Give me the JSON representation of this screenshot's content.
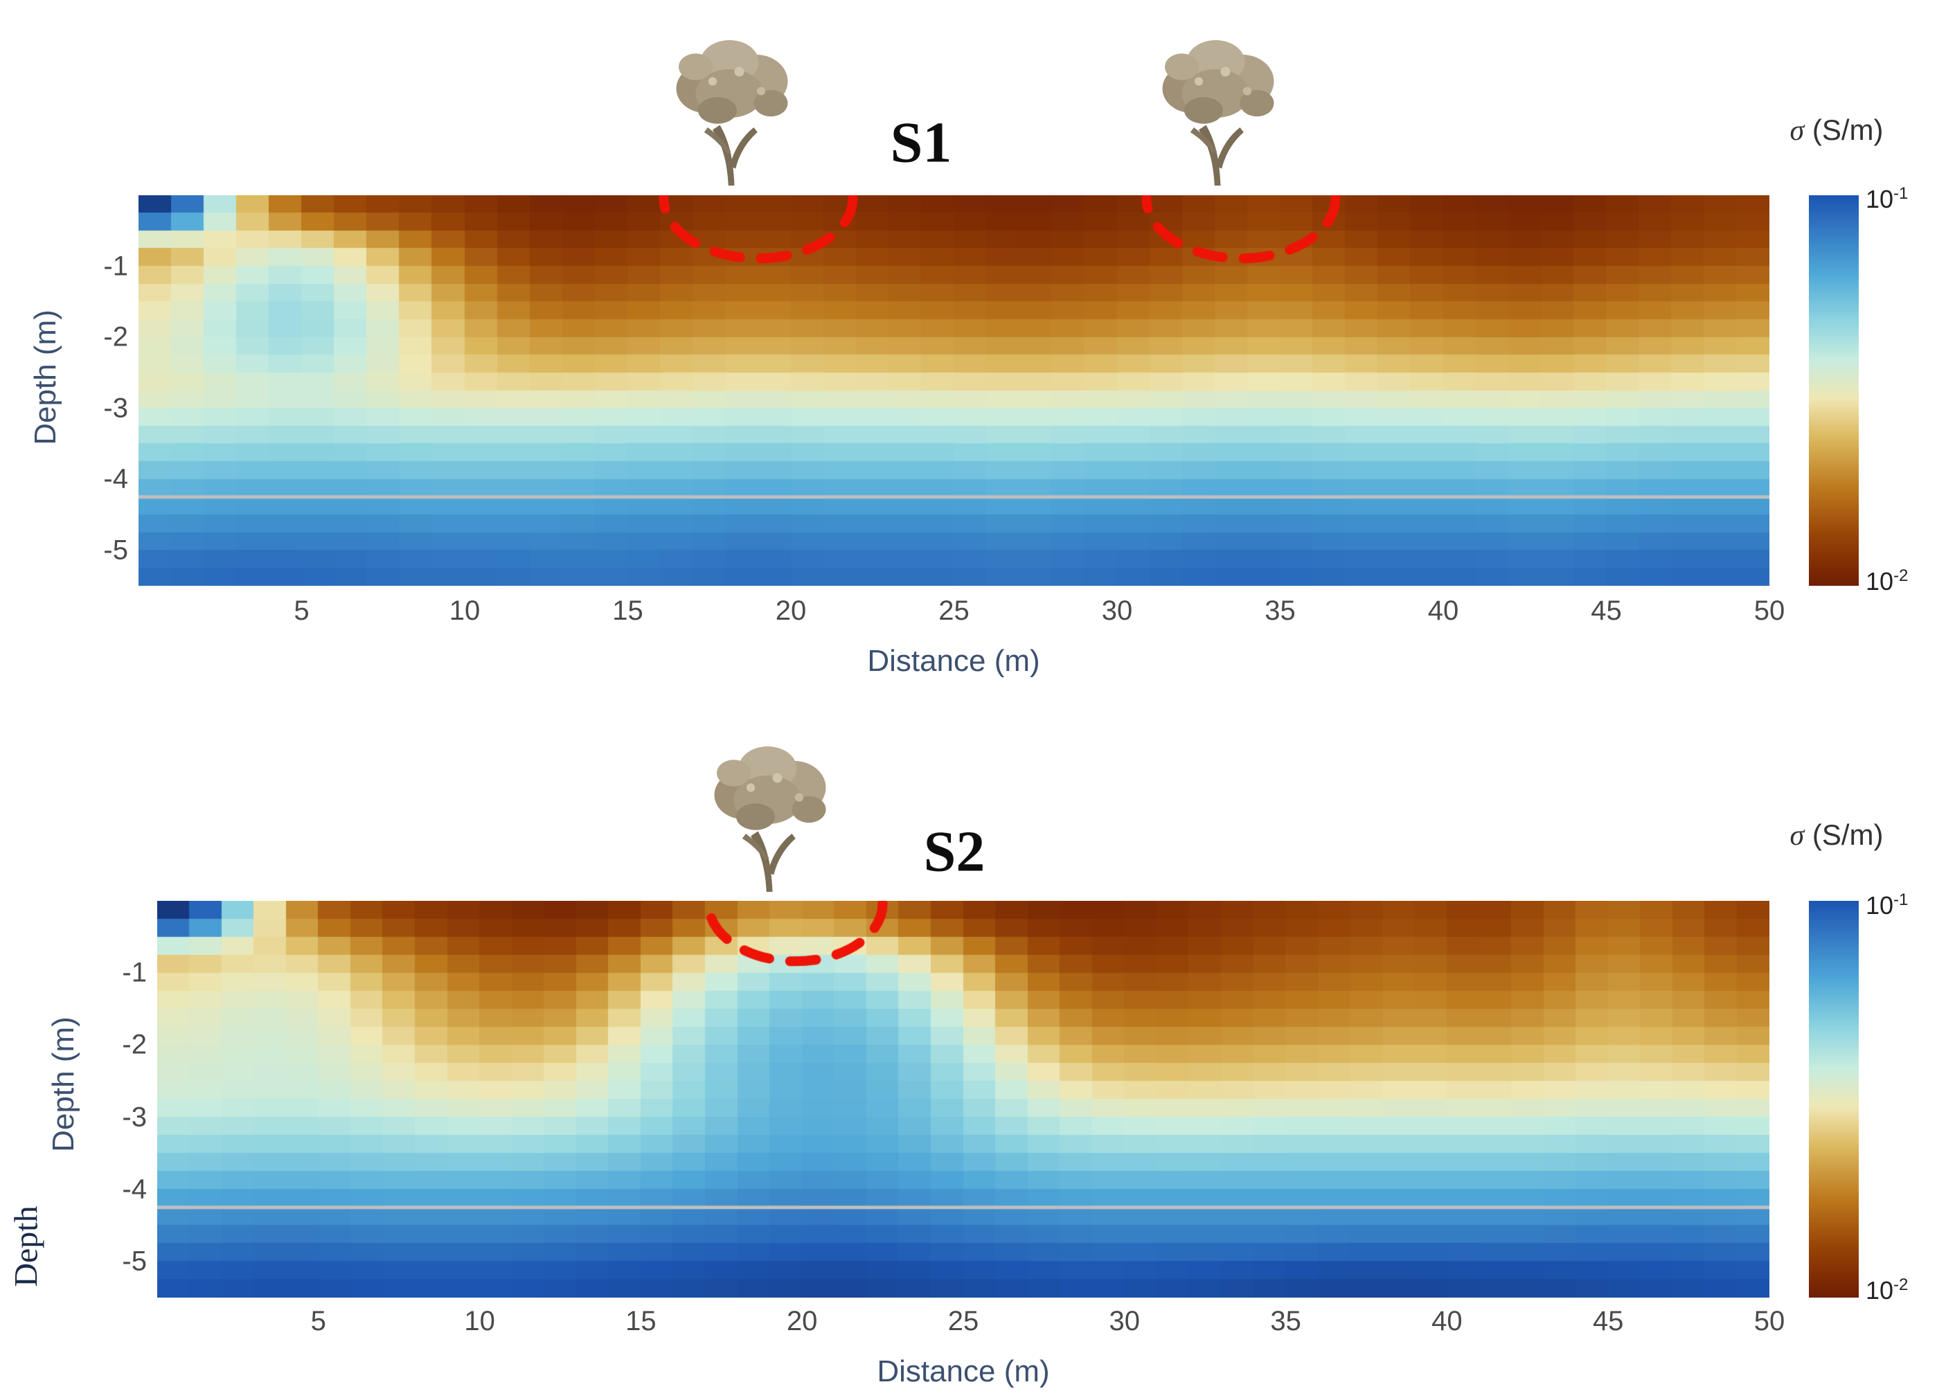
{
  "figure": {
    "background": "#ffffff"
  },
  "extra_label": "Depth",
  "chart_data": {
    "type": "heatmap",
    "quantity": "soil electrical conductivity section",
    "units": "S/m",
    "scale": "log10",
    "value_range": [
      0.01,
      0.1
    ],
    "log_range": [
      -2,
      -1
    ],
    "colormap": {
      "stops": [
        {
          "t": 0.0,
          "c": "#6f1e03"
        },
        {
          "t": 0.12,
          "c": "#964106"
        },
        {
          "t": 0.25,
          "c": "#bd7a1d"
        },
        {
          "t": 0.38,
          "c": "#dcb95f"
        },
        {
          "t": 0.48,
          "c": "#efe7b4"
        },
        {
          "t": 0.58,
          "c": "#c7ecdf"
        },
        {
          "t": 0.68,
          "c": "#8ed4e0"
        },
        {
          "t": 0.8,
          "c": "#4fa8d8"
        },
        {
          "t": 1.0,
          "c": "#1c55b2"
        },
        {
          "t": 1.15,
          "c": "#122a66"
        }
      ]
    },
    "panels": [
      {
        "name": "S1",
        "title": "S1",
        "xlabel": "Distance (m)",
        "ylabel": "Depth (m)",
        "x_range": [
          0,
          50
        ],
        "depth_range_m": [
          0,
          5.5
        ],
        "x_ticks": [
          5,
          10,
          15,
          20,
          25,
          30,
          35,
          40,
          45,
          50
        ],
        "y_ticks": [
          -1,
          -2,
          -3,
          -4,
          -5
        ],
        "grid": {
          "x0": 1,
          "dx": 2,
          "z0": 0.25,
          "dz": 0.5
        },
        "log10_sigma": [
          [
            -0.92,
            -1.55,
            -1.82,
            -1.88,
            -1.9,
            -1.94,
            -1.97,
            -1.96,
            -1.93,
            -1.92,
            -1.93,
            -1.95,
            -1.96,
            -1.97,
            -1.96,
            -1.94,
            -1.9,
            -1.88,
            -1.92,
            -1.95,
            -1.96,
            -1.97,
            -1.95,
            -1.92,
            -1.9
          ],
          [
            -1.66,
            -1.52,
            -1.46,
            -1.58,
            -1.76,
            -1.87,
            -1.92,
            -1.9,
            -1.87,
            -1.86,
            -1.87,
            -1.89,
            -1.9,
            -1.92,
            -1.91,
            -1.89,
            -1.85,
            -1.83,
            -1.86,
            -1.9,
            -1.92,
            -1.93,
            -1.9,
            -1.88,
            -1.86
          ],
          [
            -1.55,
            -1.42,
            -1.36,
            -1.48,
            -1.65,
            -1.78,
            -1.84,
            -1.83,
            -1.8,
            -1.79,
            -1.8,
            -1.82,
            -1.83,
            -1.84,
            -1.83,
            -1.81,
            -1.78,
            -1.76,
            -1.79,
            -1.82,
            -1.84,
            -1.85,
            -1.82,
            -1.8,
            -1.78
          ],
          [
            -1.5,
            -1.38,
            -1.33,
            -1.42,
            -1.58,
            -1.7,
            -1.76,
            -1.75,
            -1.73,
            -1.72,
            -1.73,
            -1.74,
            -1.75,
            -1.76,
            -1.75,
            -1.73,
            -1.71,
            -1.69,
            -1.72,
            -1.74,
            -1.76,
            -1.77,
            -1.74,
            -1.72,
            -1.7
          ],
          [
            -1.48,
            -1.4,
            -1.36,
            -1.44,
            -1.55,
            -1.63,
            -1.66,
            -1.65,
            -1.63,
            -1.62,
            -1.63,
            -1.64,
            -1.65,
            -1.66,
            -1.65,
            -1.63,
            -1.61,
            -1.6,
            -1.62,
            -1.64,
            -1.65,
            -1.66,
            -1.64,
            -1.62,
            -1.6
          ],
          [
            -1.5,
            -1.47,
            -1.45,
            -1.48,
            -1.52,
            -1.53,
            -1.53,
            -1.52,
            -1.51,
            -1.5,
            -1.51,
            -1.51,
            -1.52,
            -1.52,
            -1.52,
            -1.51,
            -1.5,
            -1.49,
            -1.5,
            -1.51,
            -1.52,
            -1.52,
            -1.51,
            -1.5,
            -1.49
          ],
          [
            -1.4,
            -1.39,
            -1.38,
            -1.39,
            -1.4,
            -1.4,
            -1.4,
            -1.39,
            -1.39,
            -1.38,
            -1.39,
            -1.39,
            -1.39,
            -1.4,
            -1.39,
            -1.39,
            -1.38,
            -1.38,
            -1.39,
            -1.39,
            -1.39,
            -1.4,
            -1.39,
            -1.38,
            -1.38
          ],
          [
            -1.3,
            -1.29,
            -1.29,
            -1.29,
            -1.3,
            -1.3,
            -1.3,
            -1.29,
            -1.29,
            -1.28,
            -1.29,
            -1.29,
            -1.29,
            -1.3,
            -1.29,
            -1.29,
            -1.28,
            -1.28,
            -1.29,
            -1.29,
            -1.29,
            -1.3,
            -1.29,
            -1.28,
            -1.28
          ],
          [
            -1.21,
            -1.2,
            -1.2,
            -1.2,
            -1.21,
            -1.21,
            -1.21,
            -1.2,
            -1.2,
            -1.19,
            -1.2,
            -1.2,
            -1.2,
            -1.21,
            -1.2,
            -1.2,
            -1.19,
            -1.19,
            -1.2,
            -1.2,
            -1.2,
            -1.21,
            -1.2,
            -1.19,
            -1.19
          ],
          [
            -1.13,
            -1.12,
            -1.12,
            -1.12,
            -1.13,
            -1.13,
            -1.13,
            -1.12,
            -1.12,
            -1.11,
            -1.12,
            -1.12,
            -1.12,
            -1.13,
            -1.12,
            -1.12,
            -1.11,
            -1.11,
            -1.12,
            -1.12,
            -1.12,
            -1.13,
            -1.12,
            -1.11,
            -1.11
          ],
          [
            -1.06,
            -1.05,
            -1.05,
            -1.06,
            -1.07,
            -1.07,
            -1.08,
            -1.08,
            -1.07,
            -1.06,
            -1.07,
            -1.07,
            -1.07,
            -1.08,
            -1.07,
            -1.06,
            -1.05,
            -1.05,
            -1.06,
            -1.06,
            -1.06,
            -1.07,
            -1.06,
            -1.05,
            -1.05
          ]
        ],
        "boundary_line_depth_m": 4.25,
        "boundary_line_color": "#bfbfbf",
        "trees_x_m": [
          18.3,
          33.2
        ],
        "root_zones": [
          {
            "x_m": 19.0,
            "rx_m": 2.9,
            "ry_m": 0.85
          },
          {
            "x_m": 33.8,
            "rx_m": 2.9,
            "ry_m": 0.85
          }
        ],
        "root_zone_color": "#ee1307",
        "colorbar": {
          "sigma": "σ",
          "units": "(S/m)",
          "top": {
            "base": "10",
            "exp": "-1"
          },
          "bottom": {
            "base": "10",
            "exp": "-2"
          }
        }
      },
      {
        "name": "S2",
        "title": "S2",
        "xlabel": "Distance (m)",
        "ylabel": "Depth (m)",
        "x_range": [
          0,
          50
        ],
        "depth_range_m": [
          0,
          5.5
        ],
        "x_ticks": [
          5,
          10,
          15,
          20,
          25,
          30,
          35,
          40,
          45,
          50
        ],
        "y_ticks": [
          -1,
          -2,
          -3,
          -4,
          -5
        ],
        "grid": {
          "x0": 1,
          "dx": 2,
          "z0": 0.25,
          "dz": 0.5
        },
        "log10_sigma": [
          [
            -0.9,
            -1.45,
            -1.8,
            -1.88,
            -1.92,
            -1.95,
            -1.96,
            -1.92,
            -1.8,
            -1.7,
            -1.72,
            -1.8,
            -1.9,
            -1.95,
            -1.96,
            -1.95,
            -1.92,
            -1.9,
            -1.88,
            -1.86,
            -1.9,
            -1.85,
            -1.78,
            -1.82,
            -1.88
          ],
          [
            -1.6,
            -1.55,
            -1.58,
            -1.7,
            -1.8,
            -1.85,
            -1.84,
            -1.72,
            -1.55,
            -1.44,
            -1.42,
            -1.5,
            -1.66,
            -1.82,
            -1.89,
            -1.9,
            -1.87,
            -1.84,
            -1.82,
            -1.8,
            -1.84,
            -1.8,
            -1.72,
            -1.76,
            -1.82
          ],
          [
            -1.52,
            -1.48,
            -1.5,
            -1.6,
            -1.7,
            -1.76,
            -1.73,
            -1.58,
            -1.42,
            -1.32,
            -1.3,
            -1.37,
            -1.52,
            -1.72,
            -1.8,
            -1.82,
            -1.8,
            -1.78,
            -1.76,
            -1.74,
            -1.77,
            -1.74,
            -1.68,
            -1.7,
            -1.75
          ],
          [
            -1.48,
            -1.45,
            -1.47,
            -1.55,
            -1.64,
            -1.68,
            -1.65,
            -1.5,
            -1.36,
            -1.27,
            -1.25,
            -1.3,
            -1.44,
            -1.62,
            -1.72,
            -1.74,
            -1.73,
            -1.71,
            -1.7,
            -1.68,
            -1.7,
            -1.68,
            -1.63,
            -1.65,
            -1.69
          ],
          [
            -1.46,
            -1.44,
            -1.45,
            -1.5,
            -1.56,
            -1.58,
            -1.54,
            -1.43,
            -1.32,
            -1.24,
            -1.22,
            -1.26,
            -1.37,
            -1.52,
            -1.61,
            -1.63,
            -1.62,
            -1.61,
            -1.6,
            -1.59,
            -1.6,
            -1.59,
            -1.56,
            -1.57,
            -1.59
          ],
          [
            -1.44,
            -1.43,
            -1.43,
            -1.46,
            -1.49,
            -1.5,
            -1.47,
            -1.4,
            -1.31,
            -1.24,
            -1.22,
            -1.25,
            -1.33,
            -1.44,
            -1.51,
            -1.52,
            -1.52,
            -1.51,
            -1.51,
            -1.5,
            -1.51,
            -1.5,
            -1.49,
            -1.49,
            -1.5
          ],
          [
            -1.36,
            -1.35,
            -1.35,
            -1.36,
            -1.38,
            -1.38,
            -1.36,
            -1.32,
            -1.27,
            -1.22,
            -1.21,
            -1.23,
            -1.29,
            -1.35,
            -1.38,
            -1.39,
            -1.39,
            -1.38,
            -1.38,
            -1.38,
            -1.38,
            -1.38,
            -1.37,
            -1.37,
            -1.38
          ],
          [
            -1.27,
            -1.26,
            -1.26,
            -1.27,
            -1.27,
            -1.27,
            -1.26,
            -1.24,
            -1.21,
            -1.18,
            -1.17,
            -1.19,
            -1.22,
            -1.25,
            -1.27,
            -1.27,
            -1.27,
            -1.27,
            -1.27,
            -1.27,
            -1.27,
            -1.27,
            -1.26,
            -1.26,
            -1.27
          ],
          [
            -1.17,
            -1.16,
            -1.16,
            -1.17,
            -1.17,
            -1.17,
            -1.16,
            -1.15,
            -1.13,
            -1.11,
            -1.1,
            -1.12,
            -1.14,
            -1.16,
            -1.17,
            -1.17,
            -1.17,
            -1.17,
            -1.17,
            -1.17,
            -1.17,
            -1.17,
            -1.16,
            -1.16,
            -1.17
          ],
          [
            -1.08,
            -1.07,
            -1.07,
            -1.08,
            -1.08,
            -1.08,
            -1.07,
            -1.06,
            -1.05,
            -1.04,
            -1.03,
            -1.04,
            -1.06,
            -1.07,
            -1.08,
            -1.08,
            -1.08,
            -1.08,
            -1.07,
            -1.07,
            -1.07,
            -1.07,
            -1.06,
            -1.06,
            -1.07
          ],
          [
            -1.0,
            -0.99,
            -0.99,
            -1.0,
            -1.0,
            -1.0,
            -0.99,
            -0.98,
            -0.97,
            -0.96,
            -0.95,
            -0.96,
            -0.97,
            -0.98,
            -0.99,
            -0.98,
            -0.97,
            -0.96,
            -0.95,
            -0.95,
            -0.96,
            -0.96,
            -0.97,
            -0.98,
            -0.99
          ]
        ],
        "boundary_line_depth_m": 4.25,
        "boundary_line_color": "#bfbfbf",
        "trees_x_m": [
          19.0
        ],
        "root_zones": [
          {
            "x_m": 19.8,
            "rx_m": 2.7,
            "ry_m": 0.8
          }
        ],
        "root_zone_color": "#ee1307",
        "colorbar": {
          "sigma": "σ",
          "units": "(S/m)",
          "top": {
            "base": "10",
            "exp": "-1"
          },
          "bottom": {
            "base": "10",
            "exp": "-2"
          }
        }
      }
    ]
  }
}
